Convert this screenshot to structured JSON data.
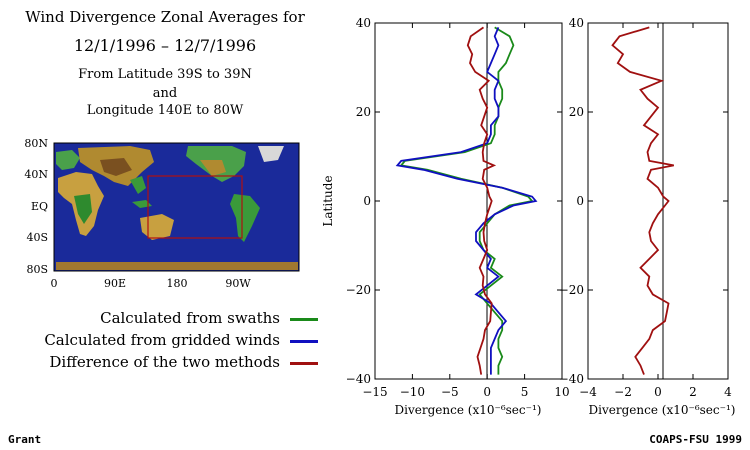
{
  "header": {
    "line1": "Wind Divergence Zonal Averages for",
    "line2": "12/1/1996 – 12/7/1996",
    "line3": "From Latitude 39S to 39N",
    "line4": "and",
    "line5": "Longitude 140E to 80W"
  },
  "map": {
    "lat_ticks": [
      "80N",
      "40N",
      "EQ",
      "40S",
      "80S"
    ],
    "lon_ticks": [
      "0",
      "90E",
      "180",
      "90W"
    ],
    "ocean_color": "#1a2a9a",
    "box_color": "#b01010"
  },
  "legend": [
    {
      "label": "Calculated from swaths",
      "color": "#1a8a1a"
    },
    {
      "label": "Calculated from gridded winds",
      "color": "#1010c0"
    },
    {
      "label": "Difference of the two methods",
      "color": "#a01010"
    }
  ],
  "footer": {
    "left": "Grant",
    "right": "COAPS-FSU 1999"
  },
  "chart_data": [
    {
      "type": "line",
      "orientation": "vertical-profile",
      "ylabel": "Latitude",
      "xlabel": "Divergence (x10⁻⁶sec⁻¹)",
      "xlim": [
        -15,
        10
      ],
      "ylim": [
        -40,
        40
      ],
      "x_ticks": [
        -15,
        -10,
        -5,
        0,
        5,
        10
      ],
      "y_ticks": [
        -40,
        -20,
        0,
        20,
        40
      ],
      "latitude": [
        39,
        37,
        35,
        33,
        31,
        29,
        27,
        25,
        23,
        21,
        19,
        17,
        15,
        13,
        11,
        9,
        8,
        7,
        5,
        3,
        1,
        0,
        -1,
        -3,
        -5,
        -7,
        -9,
        -11,
        -13,
        -15,
        -17,
        -19,
        -21,
        -23,
        -25,
        -27,
        -29,
        -31,
        -33,
        -35,
        -37,
        -39
      ],
      "series": [
        {
          "name": "Calculated from swaths",
          "values": [
            1.0,
            3.0,
            3.5,
            3.0,
            2.5,
            1.5,
            1.5,
            2.0,
            2.0,
            1.5,
            1.5,
            1.0,
            1.0,
            0.5,
            -3.0,
            -11.0,
            -11.5,
            -8.0,
            -3.5,
            2.0,
            5.5,
            6.0,
            3.0,
            1.0,
            0.0,
            -1.0,
            -1.0,
            -0.5,
            1.0,
            0.5,
            2.0,
            0.5,
            -1.0,
            0.0,
            1.0,
            2.0,
            2.0,
            1.5,
            1.5,
            2.0,
            1.5,
            1.5
          ]
        },
        {
          "name": "Calculated from gridded winds",
          "values": [
            1.5,
            1.0,
            1.5,
            1.0,
            0.5,
            0.0,
            1.5,
            1.0,
            1.0,
            1.5,
            1.5,
            0.5,
            0.5,
            0.0,
            -3.5,
            -11.5,
            -12.0,
            -8.5,
            -4.0,
            2.0,
            6.0,
            6.5,
            3.5,
            1.0,
            -0.5,
            -1.5,
            -1.5,
            -0.5,
            0.5,
            0.0,
            1.5,
            0.0,
            -1.5,
            0.5,
            1.5,
            2.5,
            1.5,
            1.0,
            0.5,
            0.5,
            0.5,
            0.5
          ]
        },
        {
          "name": "Difference of the two methods",
          "values": [
            -0.5,
            -2.2,
            -2.6,
            -2.0,
            -2.3,
            -1.6,
            0.2,
            -1.0,
            -0.6,
            0.0,
            -0.4,
            -0.8,
            0.0,
            -0.4,
            -0.6,
            -0.5,
            0.9,
            -0.4,
            -0.6,
            0.0,
            0.3,
            0.6,
            0.4,
            0.0,
            -0.3,
            -0.5,
            -0.4,
            0.0,
            -0.5,
            -1.0,
            -0.5,
            -0.6,
            -0.3,
            0.6,
            0.5,
            0.4,
            -0.3,
            -0.5,
            -0.9,
            -1.3,
            -1.0,
            -0.8
          ]
        }
      ]
    },
    {
      "type": "line",
      "orientation": "vertical-profile",
      "xlabel": "Divergence (x10⁻⁶sec⁻¹)",
      "xlim": [
        -4,
        4
      ],
      "ylim": [
        -40,
        40
      ],
      "x_ticks": [
        -4,
        -2,
        0,
        2,
        4
      ],
      "y_ticks": [
        -40,
        -20,
        0,
        20,
        40
      ],
      "series_ref": "Difference of the two methods"
    }
  ]
}
